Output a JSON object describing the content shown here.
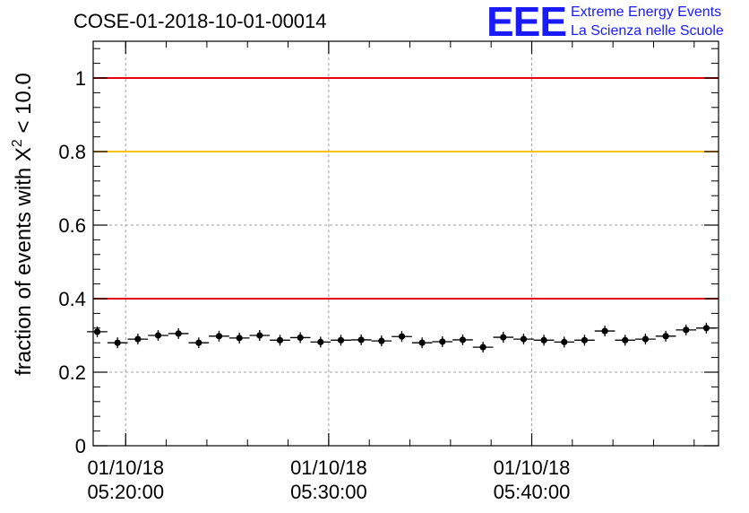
{
  "chart_data": {
    "type": "scatter",
    "title": "COSE-01-2018-10-01-00014",
    "ylabel_main": "fraction of events with X",
    "ylabel_sup": "2",
    "ylabel_tail": " < 10.0",
    "ylim": [
      0,
      1.1
    ],
    "yticks": [
      {
        "value": 0,
        "label": "0"
      },
      {
        "value": 0.2,
        "label": "0.2"
      },
      {
        "value": 0.4,
        "label": "0.4"
      },
      {
        "value": 0.6,
        "label": "0.6"
      },
      {
        "value": 0.8,
        "label": "0.8"
      },
      {
        "value": 1,
        "label": "1"
      }
    ],
    "xlim": [
      -0.2,
      30.6
    ],
    "xticks": [
      {
        "value": 1.4,
        "line1": "01/10/18",
        "line2": "05:20:00"
      },
      {
        "value": 11.4,
        "line1": "01/10/18",
        "line2": "05:30:00"
      },
      {
        "value": 21.4,
        "line1": "01/10/18",
        "line2": "05:40:00"
      }
    ],
    "reference_lines": [
      {
        "value": 1.0,
        "color": "#e8000b"
      },
      {
        "value": 0.8,
        "color": "#ffc000"
      },
      {
        "value": 0.4,
        "color": "#e8000b"
      }
    ],
    "grid": true,
    "marker_color": "#000000",
    "x": [
      0,
      1,
      2,
      3,
      4,
      5,
      6,
      7,
      8,
      9,
      10,
      11,
      12,
      13,
      14,
      15,
      16,
      17,
      18,
      19,
      20,
      21,
      22,
      23,
      24,
      25,
      26,
      27,
      28,
      29,
      30
    ],
    "values": [
      0.31,
      0.28,
      0.29,
      0.3,
      0.305,
      0.28,
      0.298,
      0.293,
      0.3,
      0.287,
      0.294,
      0.282,
      0.287,
      0.288,
      0.285,
      0.297,
      0.28,
      0.283,
      0.288,
      0.268,
      0.295,
      0.29,
      0.287,
      0.282,
      0.287,
      0.312,
      0.287,
      0.29,
      0.298,
      0.315,
      0.32
    ]
  },
  "logo": {
    "mark": "EEE",
    "line1": "Extreme Energy Events",
    "line2": "La Scienza nelle Scuole"
  }
}
